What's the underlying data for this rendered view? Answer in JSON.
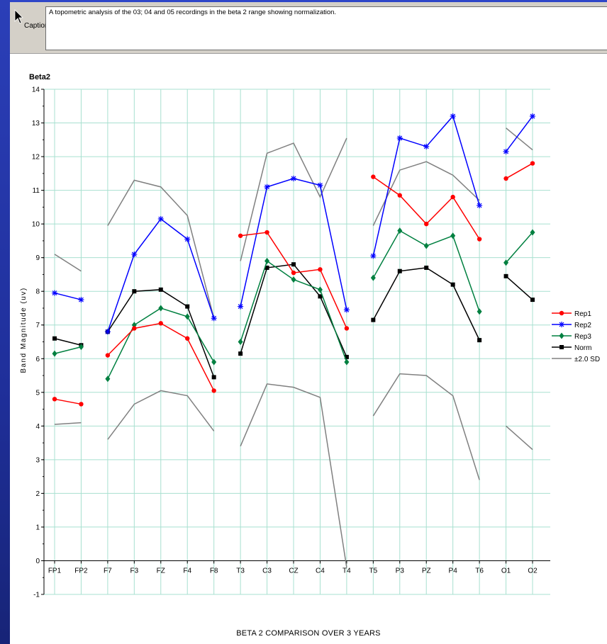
{
  "caption": {
    "button_label": "Caption",
    "text": "A topometric analysis of the 03; 04 and 05 recordings in the beta 2 range showing normalization."
  },
  "footer": {
    "title": "BETA 2 COMPARISON OVER 3 YEARS"
  },
  "chart_data": {
    "type": "line",
    "title": "Beta2",
    "ylabel": "Band Magnitude (uv)",
    "xlabel": "",
    "ylim": [
      -1,
      14
    ],
    "yticks": [
      -1,
      0,
      1,
      2,
      3,
      4,
      5,
      6,
      7,
      8,
      9,
      10,
      11,
      12,
      13,
      14
    ],
    "grid": true,
    "legend_position": "right",
    "categories": [
      "FP1",
      "FP2",
      "F7",
      "F3",
      "FZ",
      "F4",
      "F8",
      "T3",
      "C3",
      "CZ",
      "C4",
      "T4",
      "T5",
      "P3",
      "PZ",
      "P4",
      "T6",
      "O1",
      "O2"
    ],
    "segments": [
      [
        0,
        1
      ],
      [
        2,
        6
      ],
      [
        7,
        11
      ],
      [
        12,
        16
      ],
      [
        17,
        18
      ]
    ],
    "series": [
      {
        "name": "Rep1",
        "color": "#ff0000",
        "marker": "circle",
        "values": [
          4.8,
          4.65,
          6.1,
          6.9,
          7.05,
          6.6,
          5.05,
          9.65,
          9.75,
          8.55,
          8.65,
          6.9,
          11.4,
          10.85,
          10.0,
          10.8,
          9.55,
          11.35,
          11.8
        ]
      },
      {
        "name": "Rep2",
        "color": "#0000ff",
        "marker": "star",
        "values": [
          7.95,
          7.75,
          6.8,
          9.1,
          10.15,
          9.55,
          7.2,
          7.55,
          11.1,
          11.35,
          11.15,
          7.45,
          9.05,
          12.55,
          12.3,
          13.2,
          10.55,
          12.15,
          13.2
        ]
      },
      {
        "name": "Rep3",
        "color": "#008040",
        "marker": "diamond",
        "values": [
          6.15,
          6.35,
          5.4,
          7.0,
          7.5,
          7.25,
          5.9,
          6.5,
          8.9,
          8.35,
          8.05,
          5.9,
          8.4,
          9.8,
          9.35,
          9.65,
          7.4,
          8.85,
          9.75
        ]
      },
      {
        "name": "Norm",
        "color": "#000000",
        "marker": "square",
        "values": [
          6.6,
          6.4,
          6.8,
          8.0,
          8.05,
          7.55,
          5.45,
          6.15,
          8.7,
          8.8,
          7.85,
          6.05,
          7.15,
          8.6,
          8.7,
          8.2,
          6.55,
          8.45,
          7.75
        ]
      },
      {
        "name": "±2.0 SD",
        "color": "#808080",
        "marker": "none",
        "upper": [
          9.1,
          8.6,
          9.95,
          11.3,
          11.1,
          10.25,
          7.2,
          8.9,
          12.1,
          12.4,
          10.8,
          12.55,
          9.95,
          11.6,
          11.85,
          11.45,
          10.7,
          12.85,
          12.2
        ],
        "lower": [
          4.05,
          4.1,
          3.6,
          4.65,
          5.05,
          4.9,
          3.85,
          3.4,
          5.25,
          5.15,
          4.85,
          -0.2,
          4.3,
          5.55,
          5.5,
          4.9,
          2.4,
          4.0,
          3.3
        ]
      }
    ]
  }
}
